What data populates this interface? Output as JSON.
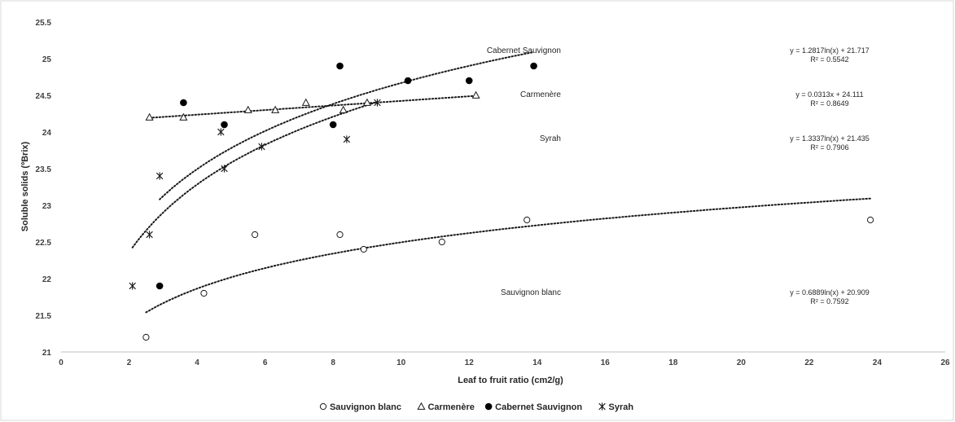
{
  "chart_data": {
    "type": "scatter",
    "title": "",
    "xlabel": "Leaf to fruit ratio (cm2/g)",
    "ylabel": "Soluble solids (ºBrix)",
    "xlim": [
      0,
      26
    ],
    "ylim": [
      21,
      25.5
    ],
    "x_ticks": [
      "0",
      "2",
      "4",
      "6",
      "8",
      "10",
      "12",
      "14",
      "16",
      "18",
      "20",
      "22",
      "24",
      "26"
    ],
    "y_ticks": [
      "21",
      "21.5",
      "22",
      "22.5",
      "23",
      "23.5",
      "24",
      "24.5",
      "25",
      "25.5"
    ],
    "grid": false,
    "legend_position": "bottom",
    "series": [
      {
        "name": "Sauvignon blanc",
        "marker": "circle-open",
        "points": [
          [
            2.5,
            21.2
          ],
          [
            4.2,
            21.8
          ],
          [
            5.7,
            22.6
          ],
          [
            8.2,
            22.6
          ],
          [
            8.9,
            22.4
          ],
          [
            11.2,
            22.5
          ],
          [
            13.7,
            22.8
          ],
          [
            23.8,
            22.8
          ]
        ],
        "trend": {
          "type": "log",
          "a": 0.6889,
          "b": 20.909,
          "x_range": [
            2.5,
            23.8
          ]
        },
        "label": "Sauvignon blanc",
        "equation": "y = 0.6889ln(x) + 20.909",
        "r2": "R² = 0.7592"
      },
      {
        "name": "Carmenère",
        "marker": "triangle-open",
        "points": [
          [
            2.6,
            24.2
          ],
          [
            3.6,
            24.2
          ],
          [
            5.5,
            24.3
          ],
          [
            6.3,
            24.3
          ],
          [
            7.2,
            24.4
          ],
          [
            8.3,
            24.3
          ],
          [
            9.0,
            24.4
          ],
          [
            12.2,
            24.5
          ]
        ],
        "trend": {
          "type": "linear",
          "a": 0.0313,
          "b": 24.111,
          "x_range": [
            2.6,
            12.2
          ]
        },
        "label": "Carmenère",
        "equation": "y = 0.0313x + 24.111",
        "r2": "R² = 0.8649"
      },
      {
        "name": "Cabernet Sauvignon",
        "marker": "circle-filled",
        "points": [
          [
            2.9,
            21.9
          ],
          [
            3.6,
            24.4
          ],
          [
            4.8,
            24.1
          ],
          [
            8.0,
            24.1
          ],
          [
            8.2,
            24.9
          ],
          [
            10.2,
            24.7
          ],
          [
            12.0,
            24.7
          ],
          [
            13.9,
            24.9
          ]
        ],
        "trend": {
          "type": "log",
          "a": 1.2817,
          "b": 21.717,
          "x_range": [
            2.9,
            13.9
          ]
        },
        "label": "Cabernet Sauvignon",
        "equation": "y = 1.2817ln(x) + 21.717",
        "r2": "R² = 0.5542"
      },
      {
        "name": "Syrah",
        "marker": "star",
        "points": [
          [
            2.1,
            21.9
          ],
          [
            2.6,
            22.6
          ],
          [
            2.9,
            23.4
          ],
          [
            4.7,
            24.0
          ],
          [
            4.8,
            23.5
          ],
          [
            5.9,
            23.8
          ],
          [
            8.4,
            23.9
          ],
          [
            9.3,
            24.4
          ]
        ],
        "trend": {
          "type": "log",
          "a": 1.3337,
          "b": 21.435,
          "x_range": [
            2.1,
            9.3
          ]
        },
        "label": "Syrah",
        "equation": "y = 1.3337ln(x) + 21.435",
        "r2": "R² = 0.7906"
      }
    ],
    "annotations": [
      {
        "series": "Cabernet Sauvignon",
        "label_x": 14.7,
        "eq_x": 22.6,
        "y": 25.08
      },
      {
        "series": "Carmenère",
        "label_x": 14.7,
        "eq_x": 22.6,
        "y": 24.48
      },
      {
        "series": "Syrah",
        "label_x": 14.7,
        "eq_x": 22.6,
        "y": 23.88
      },
      {
        "series": "Sauvignon blanc",
        "label_x": 14.7,
        "eq_x": 22.6,
        "y": 21.78
      }
    ]
  }
}
